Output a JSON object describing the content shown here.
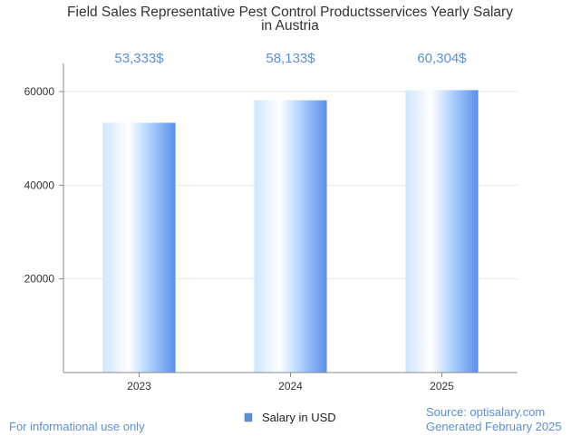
{
  "chart_data": {
    "type": "bar",
    "title_lines": [
      "Field Sales Representative Pest Control Productsservices Yearly Salary",
      "in Austria"
    ],
    "categories": [
      "2023",
      "2024",
      "2025"
    ],
    "series": [
      {
        "name": "Salary in USD",
        "values": [
          53333,
          58133,
          60304
        ],
        "value_labels": [
          "53,333$",
          "58,133$",
          "60,304$"
        ]
      }
    ],
    "y_ticks": [
      20000,
      40000,
      60000
    ],
    "ylim": [
      0,
      66000
    ],
    "grid": true,
    "legend_position": "bottom-center",
    "colors": {
      "bar_light": "#ffffff",
      "bar_mid": "#b8d8ff",
      "bar_dark": "#5b8fe8",
      "value_label": "#5b8fd6",
      "legend_swatch": "#5b8fd6"
    }
  },
  "footer": {
    "left": "For informational use only",
    "source": "Source: optisalary.com",
    "generated": "Generated February 2025"
  }
}
